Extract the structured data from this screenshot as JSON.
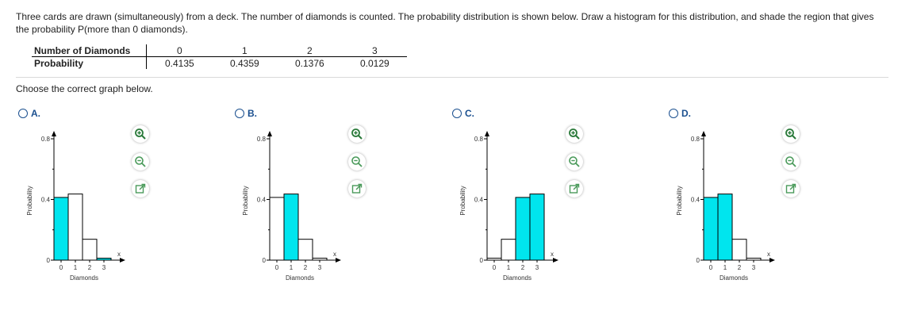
{
  "question": {
    "text": "Three cards are drawn (simultaneously) from a deck. The number of diamonds is counted. The probability distribution is shown below. Draw a histogram for this distribution, and shade the region that gives the probability P(more than 0 diamonds)."
  },
  "table": {
    "row1_label": "Number of Diamonds",
    "row2_label": "Probability",
    "x_values": [
      "0",
      "1",
      "2",
      "3"
    ],
    "p_values": [
      "0.4135",
      "0.4359",
      "0.1376",
      "0.0129"
    ]
  },
  "prompt": "Choose the correct graph below.",
  "options": [
    {
      "letter": "A.",
      "shaded": [
        0,
        3
      ]
    },
    {
      "letter": "B.",
      "shaded": [
        1
      ]
    },
    {
      "letter": "C.",
      "shaded": [
        2,
        3
      ]
    },
    {
      "letter": "D.",
      "shaded": [
        0,
        1
      ]
    }
  ],
  "chart_common": {
    "type": "bar",
    "categories": [
      "0",
      "1",
      "2",
      "3"
    ],
    "ylabel": "Probability",
    "xlabel": "Diamonds",
    "x_axis_letter": "x",
    "y_ticks": [
      "0",
      "0.4",
      "0.8"
    ],
    "ylim": [
      0,
      0.8
    ]
  },
  "chart_data": [
    {
      "type": "bar",
      "categories": [
        "0",
        "1",
        "2",
        "3"
      ],
      "values": [
        0.4135,
        0.4359,
        0.1376,
        0.0129
      ],
      "shaded_categories": [
        "0",
        "3"
      ],
      "xlabel": "Diamonds",
      "ylabel": "Probability",
      "ylim": [
        0,
        0.8
      ]
    },
    {
      "type": "bar",
      "categories": [
        "0",
        "1",
        "2",
        "3"
      ],
      "values": [
        0.4135,
        0.4359,
        0.1376,
        0.0129
      ],
      "shaded_categories": [
        "1"
      ],
      "xlabel": "Diamonds",
      "ylabel": "Probability",
      "ylim": [
        0,
        0.8
      ]
    },
    {
      "type": "bar",
      "categories": [
        "0",
        "1",
        "2",
        "3"
      ],
      "values": [
        0.0129,
        0.1376,
        0.4135,
        0.4359
      ],
      "shaded_categories": [
        "2",
        "3"
      ],
      "xlabel": "Diamonds",
      "ylabel": "Probability",
      "ylim": [
        0,
        0.8
      ]
    },
    {
      "type": "bar",
      "categories": [
        "0",
        "1",
        "2",
        "3"
      ],
      "values": [
        0.4135,
        0.4359,
        0.1376,
        0.0129
      ],
      "shaded_categories": [
        "0",
        "1"
      ],
      "xlabel": "Diamonds",
      "ylabel": "Probability",
      "ylim": [
        0,
        0.8
      ]
    }
  ],
  "colors": {
    "shade": "#00e5ee",
    "accent": "#1a4f8f",
    "zoom_in": "#2a7a3a",
    "tool_icon": "#4a9a5a"
  },
  "icons": {
    "zoom_in": "zoom-in-icon",
    "zoom_out": "zoom-out-icon",
    "enlarge": "open-new-window-icon"
  }
}
